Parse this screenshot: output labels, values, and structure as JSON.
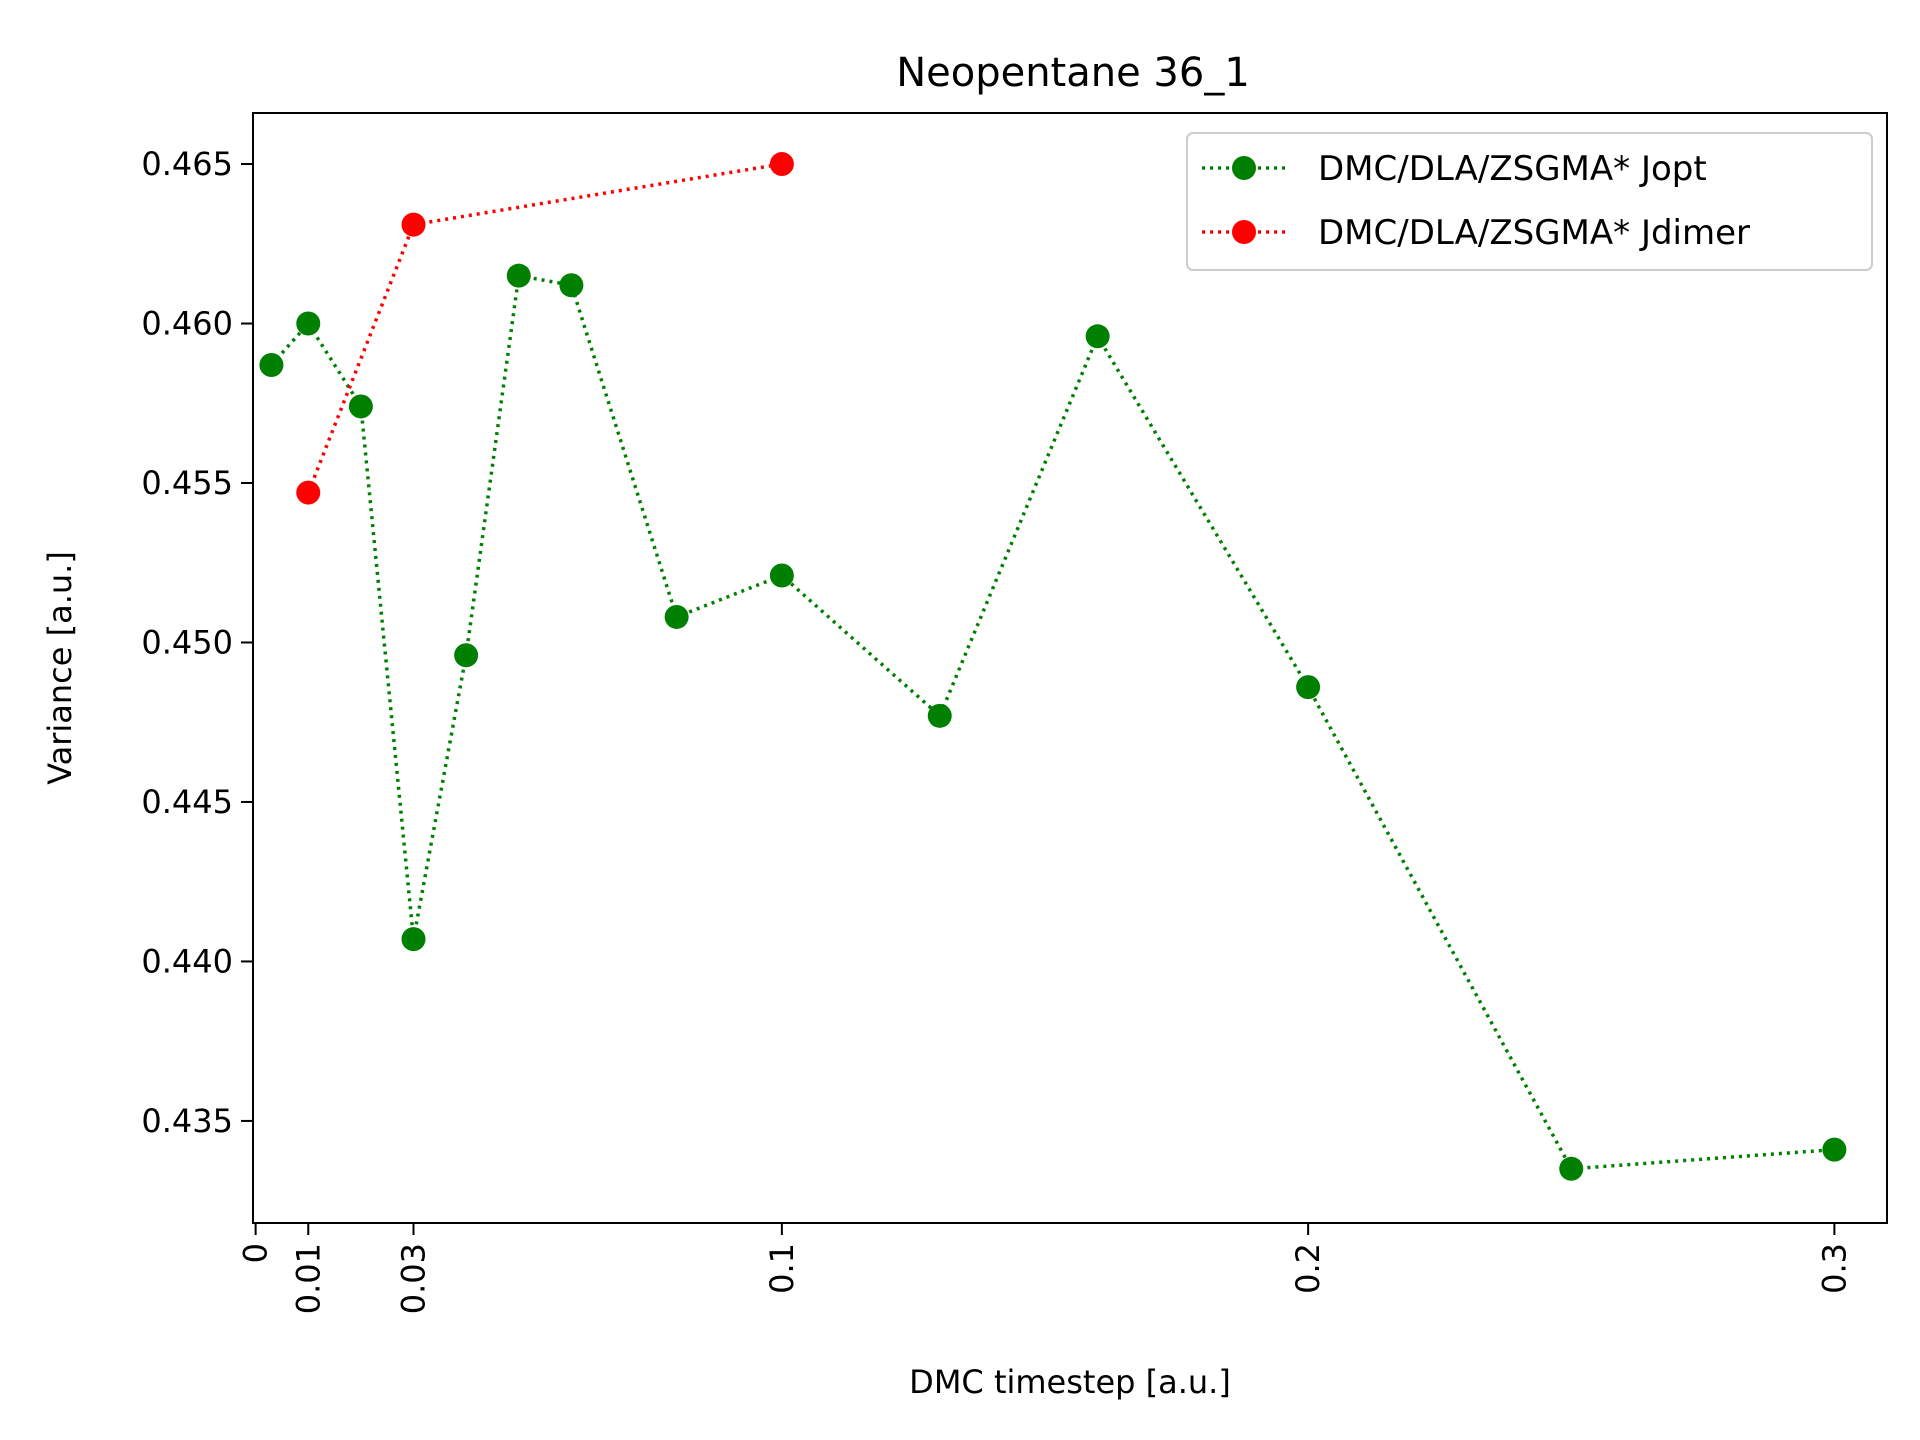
{
  "chart_data": {
    "type": "line",
    "title": "Neopentane 36_1",
    "xlabel": "DMC timestep [a.u.]",
    "ylabel": "Variance [a.u.]",
    "xlim": [
      -0.0005,
      0.31
    ],
    "ylim": [
      0.4318,
      0.4666
    ],
    "xticks": [
      0,
      0.01,
      0.03,
      0.1,
      0.2,
      0.3
    ],
    "xtick_labels": [
      "0",
      "0.01",
      "0.03",
      "0.1",
      "0.2",
      "0.3"
    ],
    "yticks": [
      0.435,
      0.44,
      0.445,
      0.45,
      0.455,
      0.46,
      0.465
    ],
    "ytick_labels": [
      "0.435",
      "0.440",
      "0.445",
      "0.450",
      "0.455",
      "0.460",
      "0.465"
    ],
    "grid": false,
    "legend": "top-right",
    "series": [
      {
        "name": "DMC/DLA/ZSGMA* Jopt",
        "color": "#008000",
        "linestyle": "dotted",
        "marker": "circle",
        "x": [
          0.003,
          0.01,
          0.02,
          0.03,
          0.04,
          0.05,
          0.06,
          0.08,
          0.1,
          0.13,
          0.16,
          0.2,
          0.25,
          0.3
        ],
        "y": [
          0.4587,
          0.46,
          0.4574,
          0.4407,
          0.4496,
          0.4615,
          0.4612,
          0.4508,
          0.4521,
          0.4477,
          0.4596,
          0.4486,
          0.4335,
          0.4341
        ]
      },
      {
        "name": "DMC/DLA/ZSGMA* Jdimer",
        "color": "#ff0000",
        "linestyle": "dotted",
        "marker": "circle",
        "x": [
          0.01,
          0.03,
          0.1
        ],
        "y": [
          0.4547,
          0.4631,
          0.465
        ]
      }
    ]
  }
}
